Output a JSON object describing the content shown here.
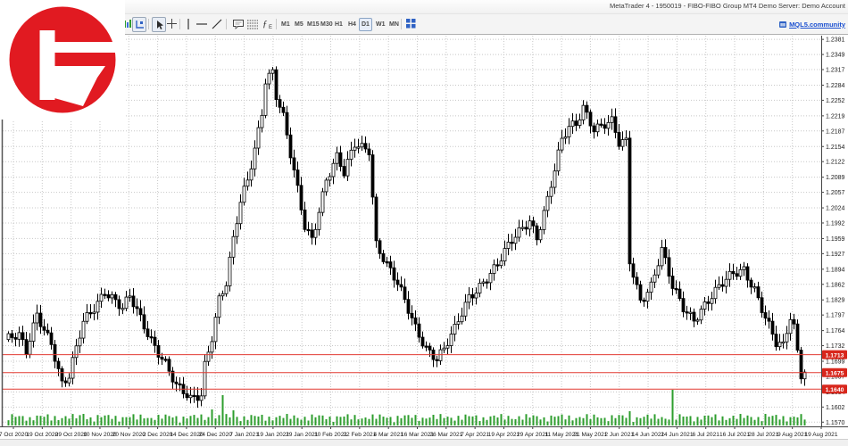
{
  "window": {
    "title": "MetaTrader 4 - 1950019 - FIBO-FIBO Group MT4 Demo Server: Demo Account"
  },
  "toolbar": {
    "timeframes": [
      "M1",
      "M5",
      "M15",
      "M30",
      "H1",
      "H4",
      "D1",
      "W1",
      "MN"
    ],
    "selected_timeframe": "D1",
    "indicators_label": "ƒ",
    "mql5_link": "MQL5.community"
  },
  "chart_data": {
    "type": "candlestick",
    "title": "",
    "price_axis": {
      "labels": [
        "1.2381",
        "1.2349",
        "1.2317",
        "1.2284",
        "1.2252",
        "1.2219",
        "1.2187",
        "1.2154",
        "1.2122",
        "1.2089",
        "1.2057",
        "1.2024",
        "1.1992",
        "1.1959",
        "1.1927",
        "1.1894",
        "1.1862",
        "1.1829",
        "1.1797",
        "1.1764",
        "1.1732",
        "1.1699",
        "1.1667",
        "1.1634",
        "1.1602",
        "1.1570"
      ],
      "ylim": [
        1.1561,
        1.2389
      ]
    },
    "date_axis": {
      "labels": [
        "7 Oct 2020",
        "19 Oct 2020",
        "29 Oct 2020",
        "10 Nov 2020",
        "20 Nov 2020",
        "2 Dec 2020",
        "14 Dec 2020",
        "24 Dec 2020",
        "7 Jan 2021",
        "19 Jan 2021",
        "29 Jan 2021",
        "10 Feb 2021",
        "22 Feb 2021",
        "4 Mar 2021",
        "16 Mar 2021",
        "26 Mar 2021",
        "7 Apr 2021",
        "19 Apr 2021",
        "29 Apr 2021",
        "11 May 2021",
        "21 May 2021",
        "2 Jun 2021",
        "14 Jun 2021",
        "24 Jun 2021",
        "6 Jul 2021",
        "16 Jul 2021",
        "28 Jul 2021",
        "9 Aug 2021",
        "19 Aug 2021"
      ]
    },
    "price_lines": [
      "1.1713",
      "1.1675",
      "1.1640"
    ],
    "last_price": "1.1675",
    "grid": true,
    "candles": {
      "count": 224,
      "path_anchors": [
        [
          0,
          1.1745
        ],
        [
          4,
          1.1748
        ],
        [
          6,
          1.1716
        ],
        [
          9,
          1.1802
        ],
        [
          13,
          1.1742
        ],
        [
          16,
          1.1648
        ],
        [
          18,
          1.1662
        ],
        [
          22,
          1.1782
        ],
        [
          28,
          1.1852
        ],
        [
          33,
          1.1806
        ],
        [
          35,
          1.1832
        ],
        [
          40,
          1.1762
        ],
        [
          45,
          1.1696
        ],
        [
          48,
          1.1642
        ],
        [
          52,
          1.1616
        ],
        [
          55,
          1.1632
        ],
        [
          56,
          1.1696
        ],
        [
          58,
          1.1756
        ],
        [
          60,
          1.1832
        ],
        [
          62,
          1.1862
        ],
        [
          64,
          1.1952
        ],
        [
          66,
          1.2032
        ],
        [
          68,
          1.2082
        ],
        [
          70,
          1.2152
        ],
        [
          72,
          1.2232
        ],
        [
          73,
          1.23
        ],
        [
          75,
          1.2315
        ],
        [
          76,
          1.2262
        ],
        [
          78,
          1.2212
        ],
        [
          80,
          1.2132
        ],
        [
          84,
          1.1986
        ],
        [
          86,
          1.1962
        ],
        [
          90,
          1.2086
        ],
        [
          93,
          1.2128
        ],
        [
          95,
          1.2092
        ],
        [
          98,
          1.2158
        ],
        [
          102,
          1.2152
        ],
        [
          104,
          1.1952
        ],
        [
          107,
          1.1902
        ],
        [
          110,
          1.1858
        ],
        [
          115,
          1.1772
        ],
        [
          118,
          1.1732
        ],
        [
          121,
          1.1706
        ],
        [
          123,
          1.1722
        ],
        [
          126,
          1.1762
        ],
        [
          130,
          1.1836
        ],
        [
          134,
          1.1872
        ],
        [
          138,
          1.1902
        ],
        [
          143,
          1.1962
        ],
        [
          147,
          1.2002
        ],
        [
          149,
          1.1966
        ],
        [
          152,
          1.2042
        ],
        [
          156,
          1.2162
        ],
        [
          158,
          1.2192
        ],
        [
          160,
          1.2202
        ],
        [
          162,
          1.2242
        ],
        [
          165,
          1.2196
        ],
        [
          170,
          1.2202
        ],
        [
          172,
          1.2156
        ],
        [
          174,
          1.2162
        ],
        [
          175,
          1.1912
        ],
        [
          178,
          1.1832
        ],
        [
          181,
          1.1862
        ],
        [
          184,
          1.1932
        ],
        [
          187,
          1.1852
        ],
        [
          190,
          1.1812
        ],
        [
          193,
          1.1792
        ],
        [
          196,
          1.1822
        ],
        [
          200,
          1.1852
        ],
        [
          204,
          1.1882
        ],
        [
          207,
          1.1896
        ],
        [
          210,
          1.1856
        ],
        [
          213,
          1.1792
        ],
        [
          216,
          1.1732
        ],
        [
          218,
          1.1726
        ],
        [
          220,
          1.1792
        ],
        [
          221,
          1.1772
        ],
        [
          222,
          1.1722
        ],
        [
          223,
          1.1676
        ]
      ]
    },
    "volume_spikes": [
      [
        21,
        13
      ],
      [
        57,
        18
      ],
      [
        60,
        34
      ],
      [
        63,
        17
      ],
      [
        174,
        16
      ],
      [
        186,
        40
      ],
      [
        212,
        13
      ]
    ],
    "colors": {
      "bull": "#ffffff",
      "bear": "#000000",
      "outline": "#000000",
      "volume": "#2e9e2e",
      "grid": "#c8c8c8",
      "red_line": "#e23b32",
      "badge": "#d8271c",
      "axis_text": "#1a1a1a"
    }
  },
  "logo": {
    "name": "FIBO Group logo",
    "circle_color": "#e11a21",
    "background": "#ffffff"
  }
}
